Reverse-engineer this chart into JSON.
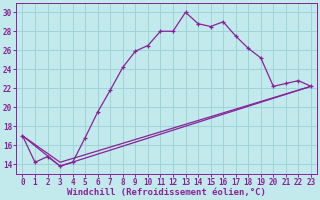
{
  "bg_color": "#c2eaec",
  "grid_color": "#9dd4d8",
  "line_color": "#882299",
  "x_ticks": [
    0,
    1,
    2,
    3,
    4,
    5,
    6,
    7,
    8,
    9,
    10,
    11,
    12,
    13,
    14,
    15,
    16,
    17,
    18,
    19,
    20,
    21,
    22,
    23
  ],
  "y_ticks": [
    14,
    16,
    18,
    20,
    22,
    24,
    26,
    28,
    30
  ],
  "ylim": [
    13.0,
    31.0
  ],
  "xlim": [
    -0.5,
    23.5
  ],
  "curve1_x": [
    0,
    1,
    2,
    3,
    4,
    5,
    6,
    7,
    8,
    9,
    10,
    11,
    12,
    13,
    14,
    15,
    16,
    17,
    18,
    19,
    20,
    21,
    22,
    23
  ],
  "curve1_y": [
    17.0,
    14.2,
    14.8,
    13.8,
    14.2,
    16.8,
    19.5,
    21.8,
    24.2,
    25.9,
    26.5,
    28.0,
    28.0,
    30.0,
    28.8,
    28.5,
    29.0,
    27.5,
    26.2,
    25.2,
    22.2,
    22.5,
    22.8,
    22.2
  ],
  "curve2_x": [
    0,
    3,
    23
  ],
  "curve2_y": [
    17.0,
    14.2,
    22.2
  ],
  "curve3_x": [
    0,
    3,
    23
  ],
  "curve3_y": [
    17.0,
    13.8,
    22.2
  ],
  "xlabel": "Windchill (Refroidissement éolien,°C)",
  "xlabel_fontsize": 6.5,
  "tick_fontsize": 5.5
}
